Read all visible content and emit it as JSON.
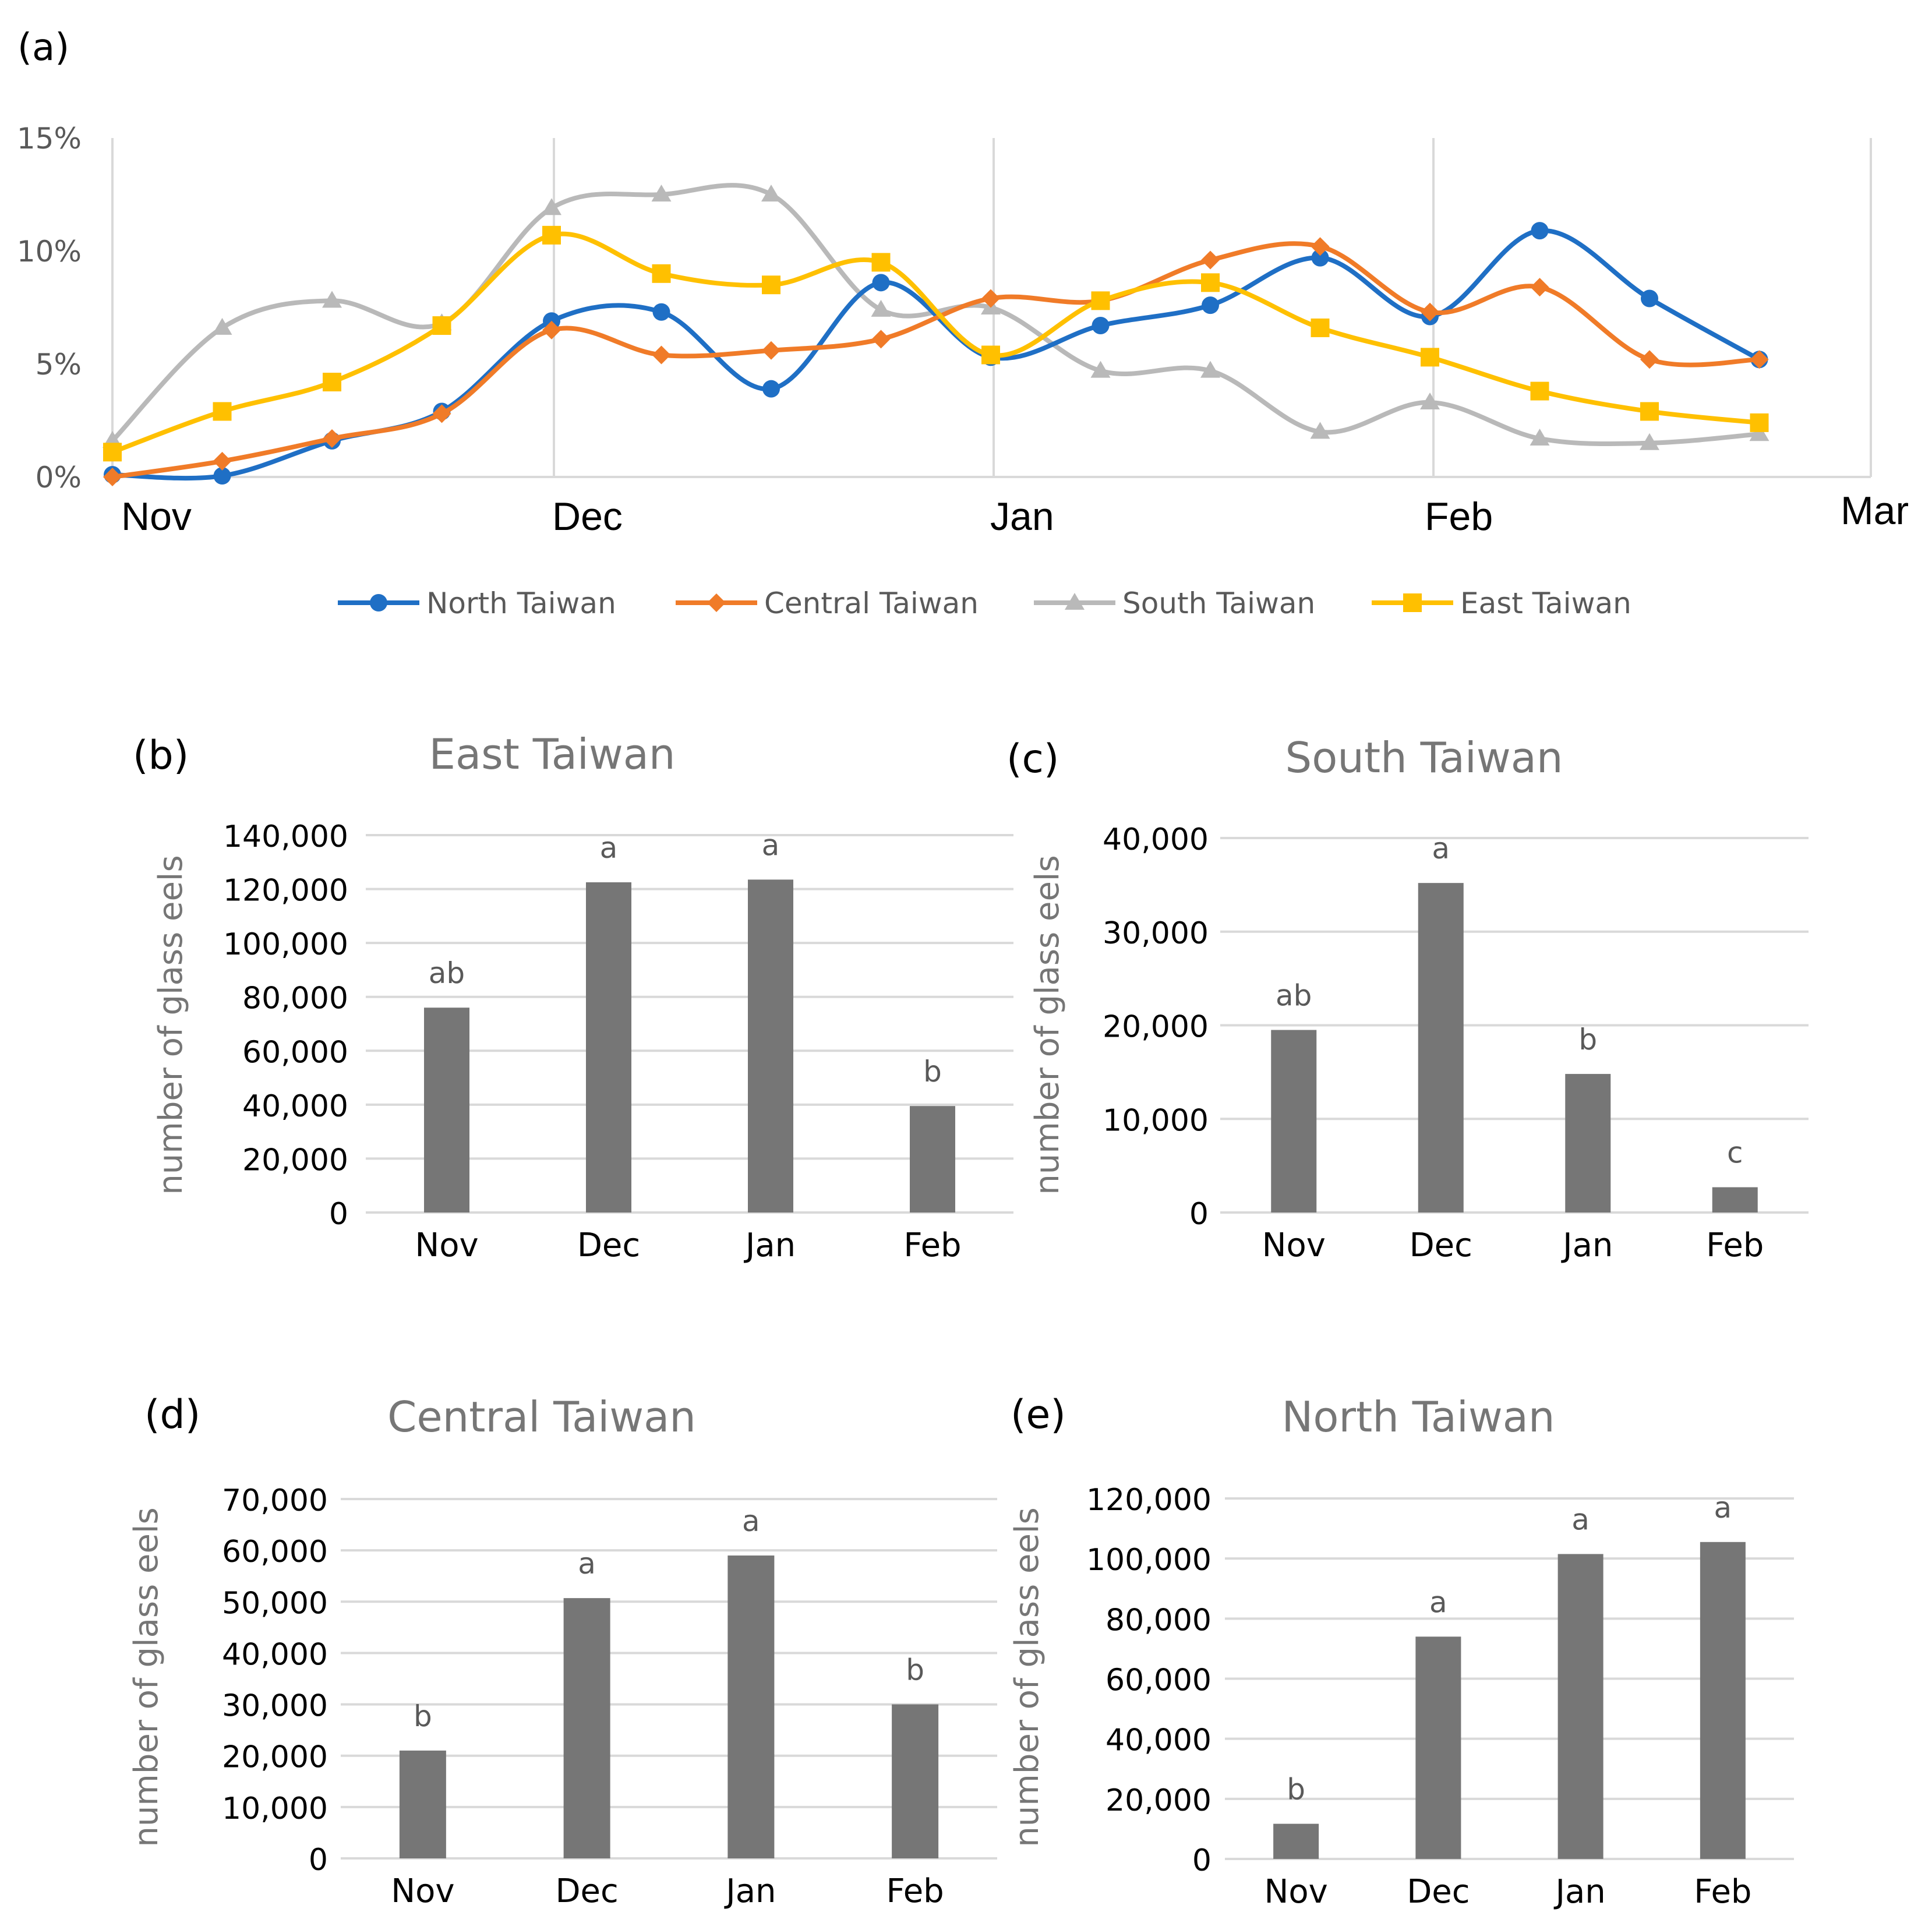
{
  "chart_data": [
    {
      "panel": "(a)",
      "type": "line",
      "title": "",
      "ylim": [
        0,
        15
      ],
      "y_ticks": [
        "0%",
        "5%",
        "10%",
        "15%"
      ],
      "months": [
        "Nov",
        "Dec",
        "Jan",
        "Feb",
        "Mar"
      ],
      "series": [
        {
          "name": "North Taiwan",
          "color": "#1f6fc5",
          "marker": "circle",
          "values": [
            0.1,
            0.05,
            1.6,
            2.9,
            6.9,
            7.3,
            3.9,
            8.6,
            5.3,
            6.7,
            7.6,
            9.7,
            7.1,
            10.9,
            7.9,
            5.2
          ]
        },
        {
          "name": "Central Taiwan",
          "color": "#f07b28",
          "marker": "diamond",
          "values": [
            0.0,
            0.7,
            1.7,
            2.8,
            6.5,
            5.4,
            5.6,
            6.1,
            7.9,
            7.8,
            9.6,
            10.2,
            7.3,
            8.4,
            5.2,
            5.2
          ]
        },
        {
          "name": "South Taiwan",
          "color": "#b9b9b9",
          "marker": "triangle",
          "values": [
            1.6,
            6.6,
            7.8,
            6.8,
            11.9,
            12.5,
            12.5,
            7.4,
            7.5,
            4.7,
            4.7,
            2.0,
            3.3,
            1.7,
            1.5,
            1.9
          ]
        },
        {
          "name": "East Taiwan",
          "color": "#ffc000",
          "marker": "square",
          "values": [
            1.1,
            2.9,
            4.2,
            6.7,
            10.7,
            9.0,
            8.5,
            9.5,
            5.4,
            7.8,
            8.6,
            6.6,
            5.3,
            3.8,
            2.9,
            2.4
          ]
        }
      ]
    },
    {
      "panel": "(b)",
      "type": "bar",
      "title": "East Taiwan",
      "ylabel": "number of glass eels",
      "categories": [
        "Nov",
        "Dec",
        "Jan",
        "Feb"
      ],
      "values": [
        76000,
        122500,
        123500,
        39500
      ],
      "labels": [
        "ab",
        "a",
        "a",
        "b"
      ],
      "ylim": [
        0,
        140000
      ],
      "y_ticks": [
        "0",
        "20,000",
        "40,000",
        "60,000",
        "80,000",
        "100,000",
        "120,000",
        "140,000"
      ]
    },
    {
      "panel": "(c)",
      "type": "bar",
      "title": "South Taiwan",
      "ylabel": "number of glass eels",
      "categories": [
        "Nov",
        "Dec",
        "Jan",
        "Feb"
      ],
      "values": [
        19500,
        35200,
        14800,
        2700
      ],
      "labels": [
        "ab",
        "a",
        "b",
        "c"
      ],
      "ylim": [
        0,
        40000
      ],
      "y_ticks": [
        "0",
        "10,000",
        "20,000",
        "30,000",
        "40,000"
      ]
    },
    {
      "panel": "(d)",
      "type": "bar",
      "title": "Central Taiwan",
      "ylabel": "number of glass eels",
      "categories": [
        "Nov",
        "Dec",
        "Jan",
        "Feb"
      ],
      "values": [
        21000,
        50700,
        59000,
        30000
      ],
      "labels": [
        "b",
        "a",
        "a",
        "b"
      ],
      "ylim": [
        0,
        70000
      ],
      "y_ticks": [
        "0",
        "10,000",
        "20,000",
        "30,000",
        "40,000",
        "50,000",
        "60,000",
        "70,000"
      ]
    },
    {
      "panel": "(e)",
      "type": "bar",
      "title": "North Taiwan",
      "ylabel": "number of glass eels",
      "categories": [
        "Nov",
        "Dec",
        "Jan",
        "Feb"
      ],
      "values": [
        11700,
        74000,
        101500,
        105500
      ],
      "labels": [
        "b",
        "a",
        "a",
        "a"
      ],
      "ylim": [
        0,
        120000
      ],
      "y_ticks": [
        "0",
        "20,000",
        "40,000",
        "60,000",
        "80,000",
        "100,000",
        "120,000"
      ]
    }
  ]
}
